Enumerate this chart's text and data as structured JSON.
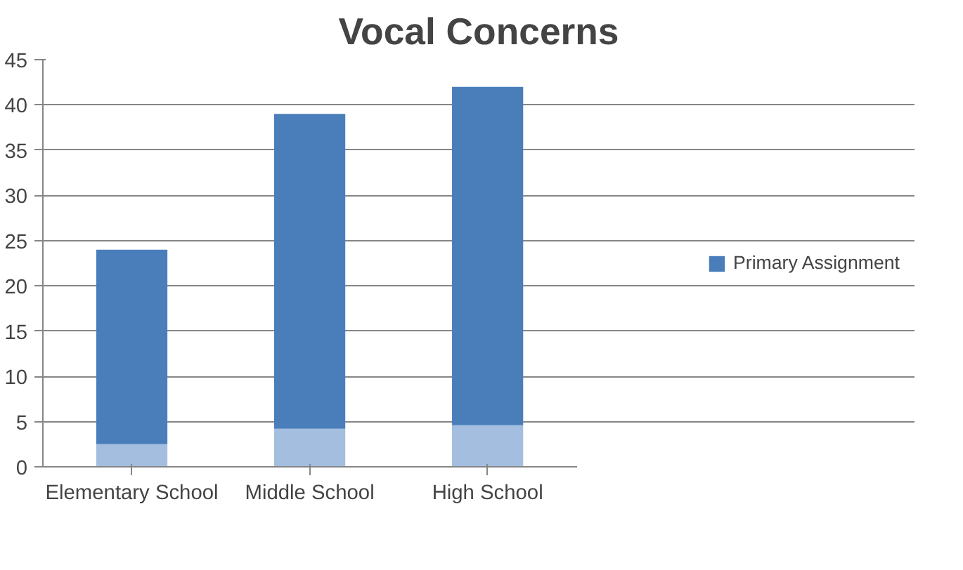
{
  "chart_data": {
    "type": "bar",
    "title": "Vocal Concerns",
    "categories": [
      "Elementary School",
      "Middle School",
      "High School"
    ],
    "stacked": true,
    "series": [
      {
        "color": "#a4bedf",
        "values": [
          2.5,
          4.2,
          4.6
        ]
      },
      {
        "name": "Primary Assignment",
        "color": "#4a7ebb",
        "values": [
          21.5,
          34.8,
          37.4
        ]
      }
    ],
    "ylim": [
      0,
      45
    ],
    "yticks": [
      0,
      5,
      10,
      15,
      20,
      25,
      30,
      35,
      40,
      45
    ],
    "grid": "y",
    "legend": "right"
  }
}
